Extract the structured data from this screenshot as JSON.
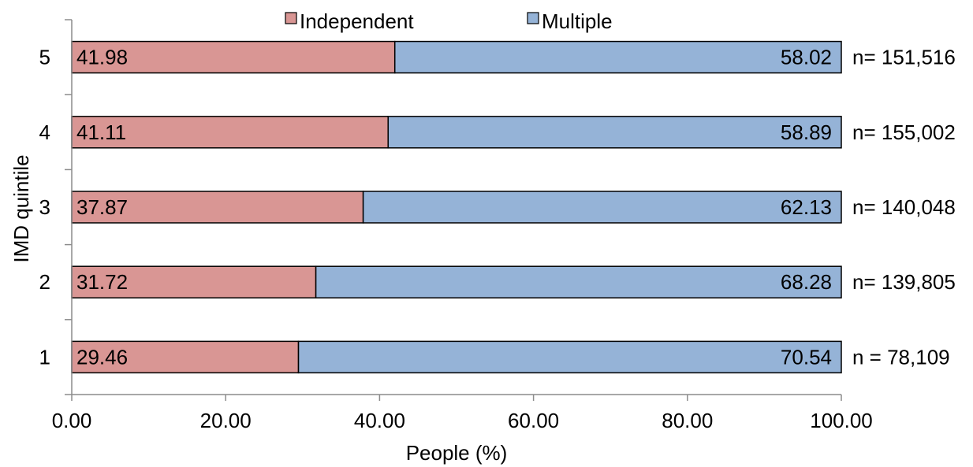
{
  "chart_data": {
    "type": "bar",
    "orientation": "horizontal",
    "stacked": true,
    "title": "",
    "xlabel": "People (%)",
    "ylabel": "IMD quintile",
    "xlim": [
      0,
      100
    ],
    "xticks": [
      "0.00",
      "20.00",
      "40.00",
      "60.00",
      "80.00",
      "100.00"
    ],
    "categories": [
      "5",
      "4",
      "3",
      "2",
      "1"
    ],
    "series": [
      {
        "name": "Independent",
        "color": "#d99694",
        "values": [
          41.98,
          41.11,
          37.87,
          31.72,
          29.46
        ],
        "labels": [
          "41.98",
          "41.11",
          "37.87",
          "31.72",
          "29.46"
        ]
      },
      {
        "name": "Multiple",
        "color": "#95b3d7",
        "values": [
          58.02,
          58.89,
          62.13,
          68.28,
          70.54
        ],
        "labels": [
          "58.02",
          "58.89",
          "62.13",
          "68.28",
          "70.54"
        ]
      }
    ],
    "n_labels": [
      "n= 151,516",
      "n= 155,002",
      "n= 140,048",
      "n= 139,805",
      "n = 78,109"
    ],
    "legend_position": "top",
    "grid": false
  }
}
